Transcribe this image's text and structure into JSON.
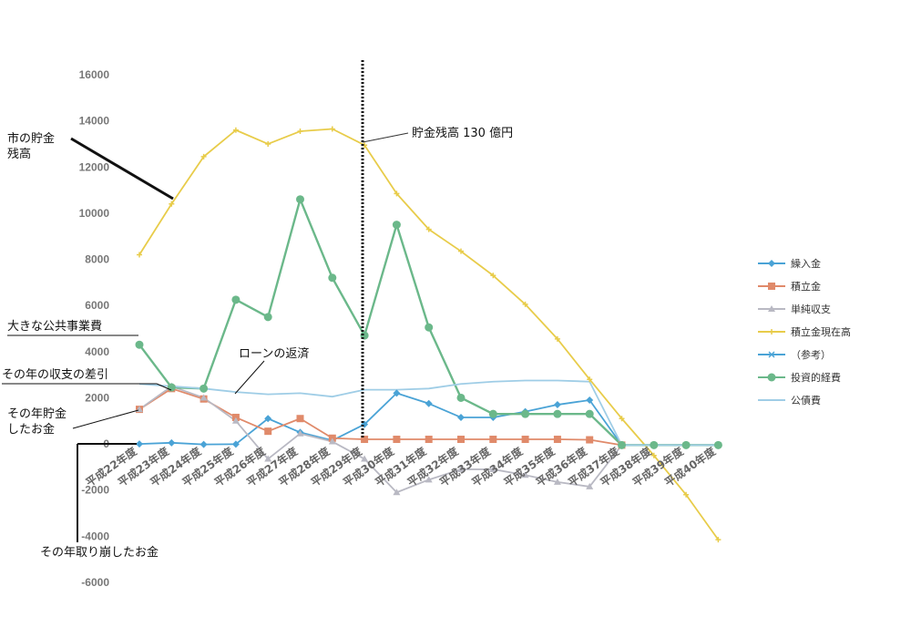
{
  "chart_data": {
    "type": "line",
    "title": "",
    "xlabel": "",
    "ylabel": "",
    "ylim": [
      -6000,
      16000
    ],
    "yticks": [
      16000,
      14000,
      12000,
      10000,
      8000,
      6000,
      4000,
      2000,
      0,
      -2000,
      -4000,
      -6000
    ],
    "categories": [
      "平成22年度",
      "平成23年度",
      "平成24年度",
      "平成25年度",
      "平成26年度",
      "平成27年度",
      "平成28年度",
      "平成29年度",
      "平成30年度",
      "平成31年度",
      "平成32年度",
      "平成33年度",
      "平成34年度",
      "平成35年度",
      "平成36年度",
      "平成37年度",
      "平成38年度",
      "平成39年度",
      "平成40年度"
    ],
    "grid": false,
    "legend_position": "right",
    "series": [
      {
        "name": "繰入金",
        "color": "#4aa3d6",
        "marker": "diamond",
        "values": [
          0,
          50,
          -20,
          -10,
          1100,
          500,
          150,
          850,
          2200,
          1750,
          1150,
          1150,
          1400,
          1700,
          1900,
          -50,
          null,
          null,
          null
        ]
      },
      {
        "name": "積立金",
        "color": "#e08a6a",
        "marker": "square",
        "values": [
          1500,
          2400,
          1950,
          1150,
          550,
          1100,
          250,
          200,
          200,
          200,
          200,
          200,
          200,
          200,
          180,
          -50,
          null,
          null,
          null
        ]
      },
      {
        "name": "単純収支",
        "color": "#b9b9c3",
        "marker": "triangle",
        "values": [
          1500,
          2500,
          2000,
          1000,
          -650,
          450,
          100,
          -650,
          -2100,
          -1550,
          -1100,
          -1100,
          -1350,
          -1650,
          -1850,
          -50,
          null,
          null,
          null
        ]
      },
      {
        "name": "積立金現在高",
        "color": "#e8cc4a",
        "marker": "cross",
        "values": [
          8200,
          10400,
          12450,
          13600,
          13000,
          13550,
          13650,
          12950,
          10850,
          9300,
          8350,
          7300,
          6050,
          4550,
          2800,
          1100,
          -500,
          -2200,
          -4150
        ]
      },
      {
        "name": "（参考）",
        "color": "#4aa3d6",
        "marker": "x",
        "values": [
          null,
          null,
          null,
          null,
          null,
          null,
          null,
          null,
          null,
          null,
          null,
          null,
          null,
          null,
          null,
          null,
          null,
          null,
          null
        ]
      },
      {
        "name": "投資的経費",
        "color": "#6bb88a",
        "marker": "circle",
        "values": [
          4300,
          2450,
          2400,
          6250,
          5500,
          10600,
          7200,
          4700,
          9500,
          5050,
          2000,
          1300,
          1300,
          1300,
          1300,
          -50,
          -50,
          -50,
          -50
        ]
      },
      {
        "name": "公債費",
        "color": "#9fcde6",
        "marker": "none",
        "values": [
          2600,
          2500,
          2400,
          2250,
          2150,
          2200,
          2050,
          2350,
          2350,
          2400,
          2600,
          2700,
          2750,
          2750,
          2700,
          -50,
          -50,
          -50,
          -50
        ]
      }
    ],
    "annotations": [
      {
        "id": "savings",
        "text_lines": [
          "市の貯金",
          "残高"
        ],
        "target_series": "積立金現在高"
      },
      {
        "id": "balance130",
        "text": "貯金残高 130 億円"
      },
      {
        "id": "public_works",
        "text": "大きな公共事業費",
        "target_series": "投資的経費"
      },
      {
        "id": "loan",
        "text": "ローンの返済",
        "target_series": "公債費"
      },
      {
        "id": "yearly_diff",
        "text": "その年の収支の差引",
        "target_series": "単純収支"
      },
      {
        "id": "saved",
        "text_lines": [
          "その年貯金",
          "したお金"
        ],
        "target_series": "積立金"
      },
      {
        "id": "withdrawn",
        "text": "その年取り崩したお金",
        "target_series": "繰入金"
      }
    ]
  }
}
